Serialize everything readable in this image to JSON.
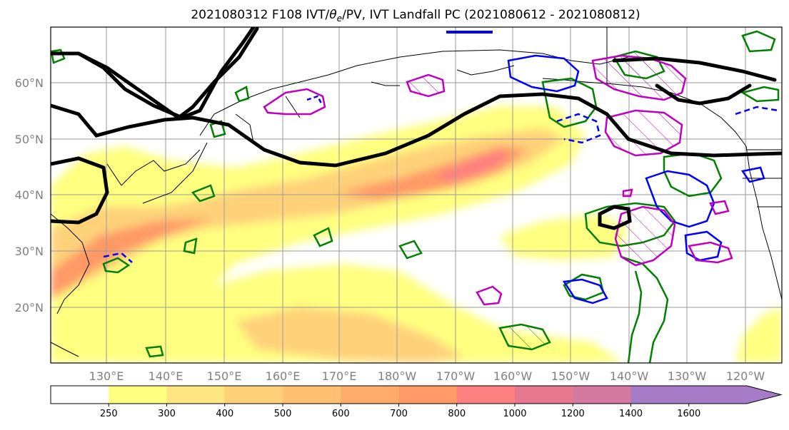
{
  "chart_data": {
    "type": "contour-map",
    "title": "2021080312 F108 IVT/θe/PV, IVT Landfall PC (2021080612 - 2021080812)",
    "title_parts": {
      "before": "2021080312 F108 IVT/",
      "symbol": "θ",
      "subscript": "e",
      "after": "/PV, IVT Landfall PC (2021080612 - 2021080812)"
    },
    "lon_ticks": [
      "130°E",
      "140°E",
      "150°E",
      "160°E",
      "170°E",
      "180°W",
      "170°W",
      "160°W",
      "150°W",
      "140°W",
      "130°W",
      "120°W"
    ],
    "lat_ticks": [
      "60°N",
      "50°N",
      "40°N",
      "30°N",
      "20°N"
    ],
    "lon_range": [
      120,
      250
    ],
    "lat_range": [
      10,
      70
    ],
    "grid": true,
    "colorbar": {
      "orientation": "horizontal",
      "extend": "max",
      "levels": [
        "250",
        "300",
        "400",
        "500",
        "600",
        "700",
        "800",
        "1000",
        "1200",
        "1400",
        "1600"
      ],
      "colors": [
        "#ffffff",
        "#ffff80",
        "#ffe680",
        "#ffd27a",
        "#ffc073",
        "#ffab6b",
        "#ff9966",
        "#ff8080",
        "#e8788f",
        "#d47aa0",
        "#a67bc7",
        "#a67bc7"
      ]
    },
    "colors": {
      "theta_e_contour": "#000000",
      "pv_positive": "#008000",
      "pv_negative": "#0000ff",
      "landfall_pc": "#c000c0"
    }
  }
}
